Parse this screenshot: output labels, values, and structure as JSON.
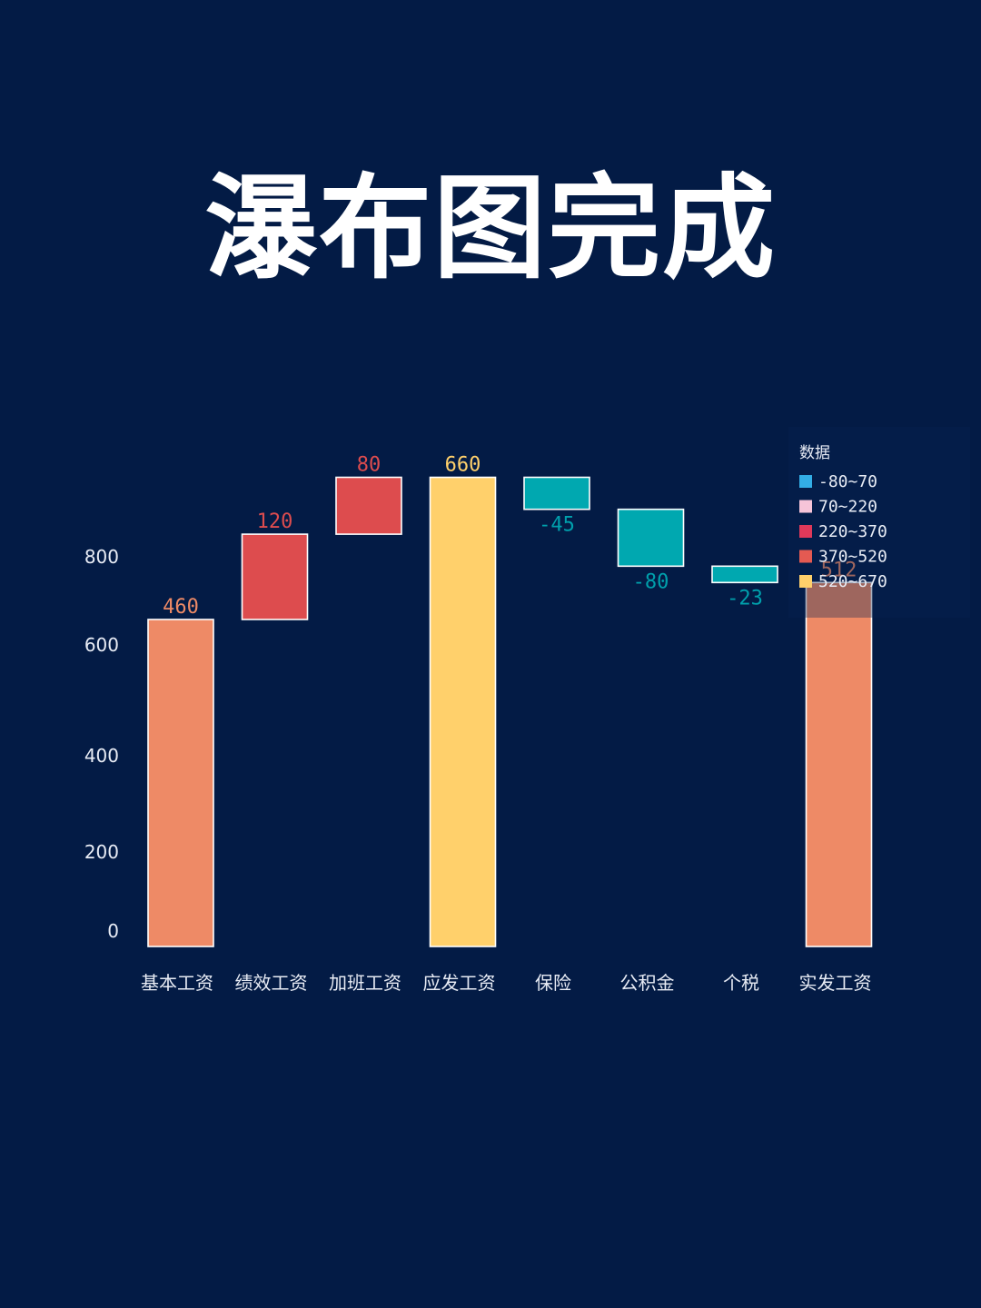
{
  "title": "瀑布图完成",
  "colors": {
    "background": "#031b45",
    "base": "#ee8a66",
    "increase": "#dd4c4e",
    "total": "#ffd06b",
    "decrease": "#00a8b0",
    "bar_stroke": "#ffffff"
  },
  "chart_data": {
    "type": "bar",
    "subtype": "waterfall",
    "categories": [
      "基本工资",
      "绩效工资",
      "加班工资",
      "应发工资",
      "保险",
      "公积金",
      "个税",
      "实发工资"
    ],
    "values": [
      460,
      120,
      80,
      660,
      -45,
      -80,
      -23,
      512
    ],
    "data_labels": [
      "460",
      "120",
      "80",
      "660",
      "-45",
      "-80",
      "-23",
      "512"
    ],
    "bar_types": [
      "base",
      "increase",
      "increase",
      "total",
      "decrease",
      "decrease",
      "decrease",
      "total2"
    ],
    "ylim": [
      0,
      800
    ],
    "yticks": [
      0,
      200,
      400,
      600,
      800
    ],
    "ytick_labels": [
      "0",
      "200",
      "400",
      "600",
      "800"
    ],
    "grid": false,
    "legend": {
      "title": "数据",
      "position": "top-right",
      "entries": [
        {
          "label": "-80~70",
          "color": "#33aee6"
        },
        {
          "label": "70~220",
          "color": "#f6c4d8"
        },
        {
          "label": "220~370",
          "color": "#e0395a"
        },
        {
          "label": "370~520",
          "color": "#e45a52"
        },
        {
          "label": "520~670",
          "color": "#ffd06b"
        }
      ]
    }
  }
}
